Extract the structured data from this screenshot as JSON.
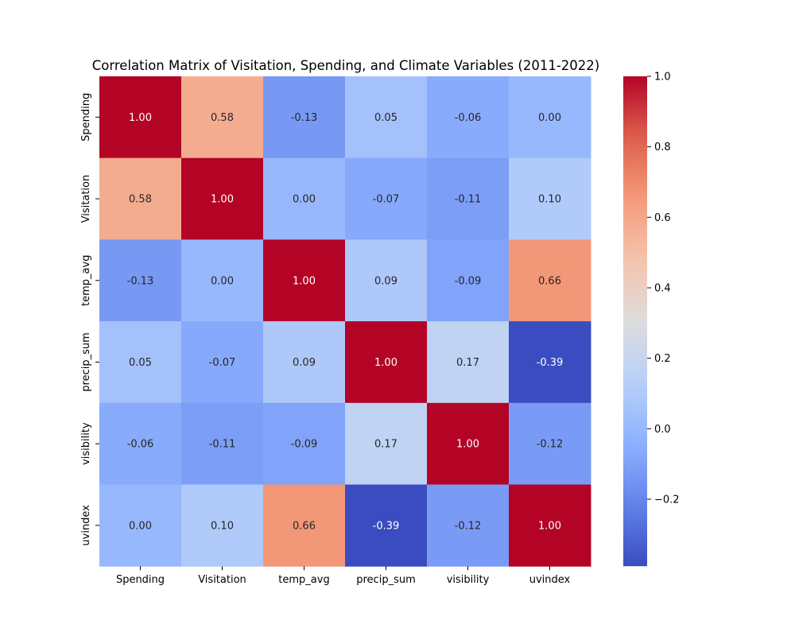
{
  "chart_data": {
    "type": "heatmap",
    "title": "Correlation Matrix of Visitation, Spending, and Climate Variables (2011-2022)",
    "x_labels": [
      "Spending",
      "Visitation",
      "temp_avg",
      "precip_sum",
      "visibility",
      "uvindex"
    ],
    "y_labels": [
      "Spending",
      "Visitation",
      "temp_avg",
      "precip_sum",
      "visibility",
      "uvindex"
    ],
    "values": [
      [
        1.0,
        0.58,
        -0.13,
        0.05,
        -0.06,
        0.0
      ],
      [
        0.58,
        1.0,
        -0.0,
        -0.07,
        -0.11,
        0.1
      ],
      [
        -0.13,
        -0.0,
        1.0,
        0.09,
        -0.09,
        0.66
      ],
      [
        0.05,
        -0.07,
        0.09,
        1.0,
        0.17,
        -0.39
      ],
      [
        -0.06,
        -0.11,
        -0.09,
        0.17,
        1.0,
        -0.12
      ],
      [
        0.0,
        0.1,
        0.66,
        -0.39,
        -0.12,
        1.0
      ]
    ],
    "value_format": "0.00",
    "colormap": "coolwarm",
    "color_range": [
      -0.39,
      1.0
    ],
    "colorbar": {
      "ticks": [
        1.0,
        0.8,
        0.6,
        0.4,
        0.2,
        0.0,
        -0.2
      ],
      "tick_labels": [
        "1.0",
        "0.8",
        "0.6",
        "0.4",
        "0.2",
        "0.0",
        "−0.2"
      ]
    }
  }
}
